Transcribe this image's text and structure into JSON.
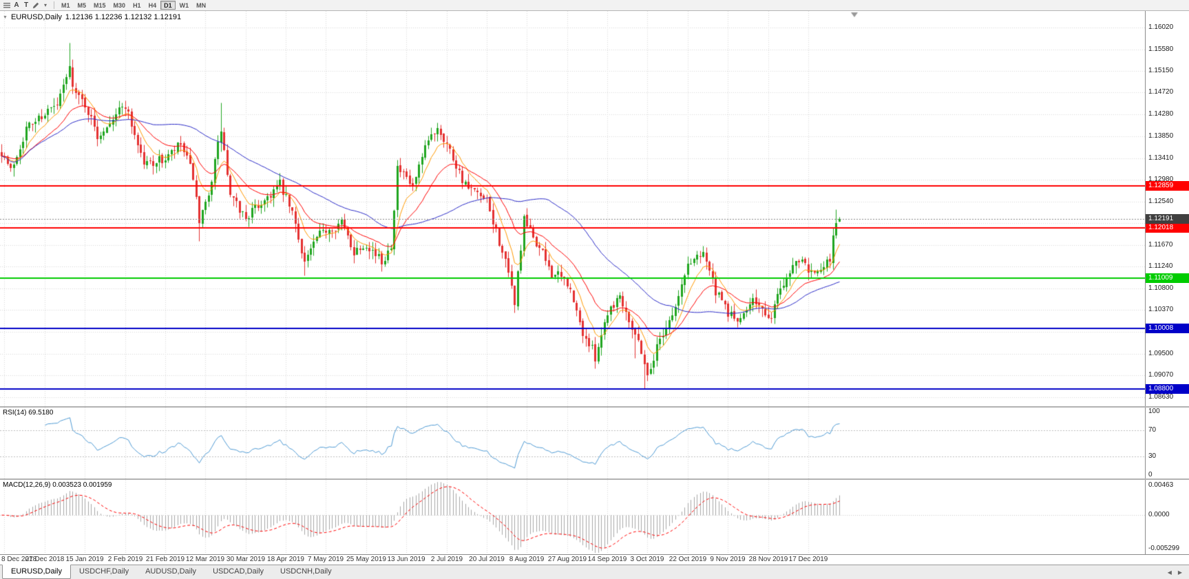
{
  "toolbar": {
    "cursor_label": "A",
    "text_label": "T",
    "timeframes": [
      "M1",
      "M5",
      "M15",
      "M30",
      "H1",
      "H4",
      "D1",
      "W1",
      "MN"
    ],
    "active_timeframe": "D1"
  },
  "icons": {
    "collapse": "▼",
    "chevron_down": "▾",
    "scroll_left": "◀",
    "scroll_right": "▶"
  },
  "chart_header": {
    "symbol": "EURUSD,Daily",
    "ohlc": "1.12136 1.12236 1.12132 1.12191"
  },
  "price_axis": {
    "min": 1.0845,
    "max": 1.1635,
    "ticks": [
      "1.16020",
      "1.15580",
      "1.15150",
      "1.14720",
      "1.14280",
      "1.13850",
      "1.13410",
      "1.12980",
      "1.12540",
      "1.12110",
      "1.11670",
      "1.11240",
      "1.10800",
      "1.10370",
      "1.09930",
      "1.09500",
      "1.09070",
      "1.08630"
    ]
  },
  "levels": [
    {
      "label": "1.12859",
      "value": 1.12859,
      "color": "#ff0000"
    },
    {
      "label": "1.12018",
      "value": 1.12018,
      "color": "#ff0000"
    },
    {
      "label": "1.11009",
      "value": 1.11009,
      "color": "#00cc00"
    },
    {
      "label": "1.10008",
      "value": 1.10008,
      "color": "#0000c8"
    },
    {
      "label": "1.08800",
      "value": 1.088,
      "color": "#0000c8"
    }
  ],
  "current_price": {
    "label": "1.12191",
    "value": 1.12191,
    "badge_color": "#404040",
    "line_color": "#888888"
  },
  "rsi": {
    "title": "RSI(14) 69.5180",
    "period": 14,
    "last": 69.518,
    "axis": [
      "100",
      "70",
      "30",
      "0"
    ],
    "line_color": "#4f9bd5"
  },
  "macd": {
    "title": "MACD(12,26,9) 0.003523 0.001959",
    "fast": 12,
    "slow": 26,
    "signal": 9,
    "last_macd": 0.003523,
    "last_signal": 0.001959,
    "axis": [
      "0.00463",
      "0.0000",
      "-0.005299"
    ],
    "range_max": 0.0051,
    "range_min": -0.0057,
    "histogram_color": "#a6a6a6",
    "signal_color": "#ff0000"
  },
  "date_axis": {
    "labels": [
      "8 Dec 2018",
      "27 Dec 2018",
      "15 Jan 2019",
      "2 Feb 2019",
      "21 Feb 2019",
      "12 Mar 2019",
      "30 Mar 2019",
      "18 Apr 2019",
      "7 May 2019",
      "25 May 2019",
      "13 Jun 2019",
      "2 Jul 2019",
      "20 Jul 2019",
      "8 Aug 2019",
      "27 Aug 2019",
      "14 Sep 2019",
      "3 Oct 2019",
      "22 Oct 2019",
      "9 Nov 2019",
      "28 Nov 2019",
      "17 Dec 2019"
    ],
    "bar_indices": [
      1,
      14,
      27,
      40,
      53,
      66,
      79,
      92,
      105,
      118,
      131,
      144,
      157,
      170,
      183,
      196,
      209,
      222,
      235,
      248,
      261
    ]
  },
  "tabs": [
    {
      "label": "EURUSD,Daily",
      "active": true
    },
    {
      "label": "USDCHF,Daily",
      "active": false
    },
    {
      "label": "AUDUSD,Daily",
      "active": false
    },
    {
      "label": "USDCAD,Daily",
      "active": false
    },
    {
      "label": "USDCNH,Daily",
      "active": false
    }
  ],
  "chart_data": {
    "type": "candlestick",
    "symbol": "EURUSD",
    "timeframe": "D1",
    "bars": 272,
    "bar_spacing": 4.49,
    "candle_width": 3,
    "up_color": "#1fa51f",
    "down_color": "#e43030",
    "ma_colors": {
      "fast_ema8": "#ff9900",
      "mid_ema20": "#ff0000",
      "slow_sma50": "#2a2ac8"
    },
    "last_ohlc": {
      "open": 1.12136,
      "high": 1.12236,
      "low": 1.12132,
      "close": 1.12191
    },
    "waypoints": [
      [
        0,
        1.1355
      ],
      [
        3,
        1.1315
      ],
      [
        8,
        1.14
      ],
      [
        14,
        1.1432
      ],
      [
        18,
        1.1445
      ],
      [
        22,
        1.152
      ],
      [
        24,
        1.1468
      ],
      [
        27,
        1.145
      ],
      [
        31,
        1.1385
      ],
      [
        36,
        1.1425
      ],
      [
        40,
        1.1448
      ],
      [
        46,
        1.133
      ],
      [
        53,
        1.1338
      ],
      [
        58,
        1.1368
      ],
      [
        62,
        1.1305
      ],
      [
        64,
        1.1205
      ],
      [
        66,
        1.1248
      ],
      [
        68,
        1.13
      ],
      [
        71,
        1.1398
      ],
      [
        74,
        1.1262
      ],
      [
        79,
        1.1222
      ],
      [
        85,
        1.1258
      ],
      [
        90,
        1.1288
      ],
      [
        94,
        1.123
      ],
      [
        98,
        1.1135
      ],
      [
        102,
        1.118
      ],
      [
        105,
        1.1198
      ],
      [
        110,
        1.1212
      ],
      [
        114,
        1.1155
      ],
      [
        118,
        1.1172
      ],
      [
        123,
        1.1132
      ],
      [
        126,
        1.117
      ],
      [
        128,
        1.132
      ],
      [
        133,
        1.1282
      ],
      [
        138,
        1.1375
      ],
      [
        141,
        1.1405
      ],
      [
        144,
        1.137
      ],
      [
        150,
        1.1285
      ],
      [
        157,
        1.1252
      ],
      [
        162,
        1.1155
      ],
      [
        166,
        1.1055
      ],
      [
        169,
        1.1215
      ],
      [
        173,
        1.1172
      ],
      [
        178,
        1.1112
      ],
      [
        183,
        1.1092
      ],
      [
        188,
        1.0992
      ],
      [
        192,
        1.0945
      ],
      [
        196,
        1.1035
      ],
      [
        200,
        1.1068
      ],
      [
        204,
        1.1005
      ],
      [
        207,
        1.0958
      ],
      [
        209,
        1.0905
      ],
      [
        213,
        1.0982
      ],
      [
        218,
        1.1042
      ],
      [
        222,
        1.1128
      ],
      [
        227,
        1.1158
      ],
      [
        231,
        1.1072
      ],
      [
        235,
        1.1032
      ],
      [
        239,
        1.1012
      ],
      [
        243,
        1.1068
      ],
      [
        248,
        1.1012
      ],
      [
        252,
        1.1082
      ],
      [
        256,
        1.1128
      ],
      [
        259,
        1.1148
      ],
      [
        261,
        1.1122
      ],
      [
        265,
        1.1112
      ],
      [
        268,
        1.114
      ],
      [
        269,
        1.1185
      ],
      [
        270,
        1.1215
      ],
      [
        271,
        1.12191
      ]
    ],
    "spikes": [
      [
        22,
        "h",
        1.1572
      ],
      [
        64,
        "l",
        1.1176
      ],
      [
        71,
        "h",
        1.1452
      ],
      [
        98,
        "l",
        1.1107
      ],
      [
        141,
        "h",
        1.1412
      ],
      [
        166,
        "l",
        1.1032
      ],
      [
        192,
        "l",
        1.0926
      ],
      [
        205,
        "l",
        1.0941
      ],
      [
        208,
        "l",
        1.0879
      ],
      [
        270,
        "h",
        1.1238
      ]
    ]
  }
}
